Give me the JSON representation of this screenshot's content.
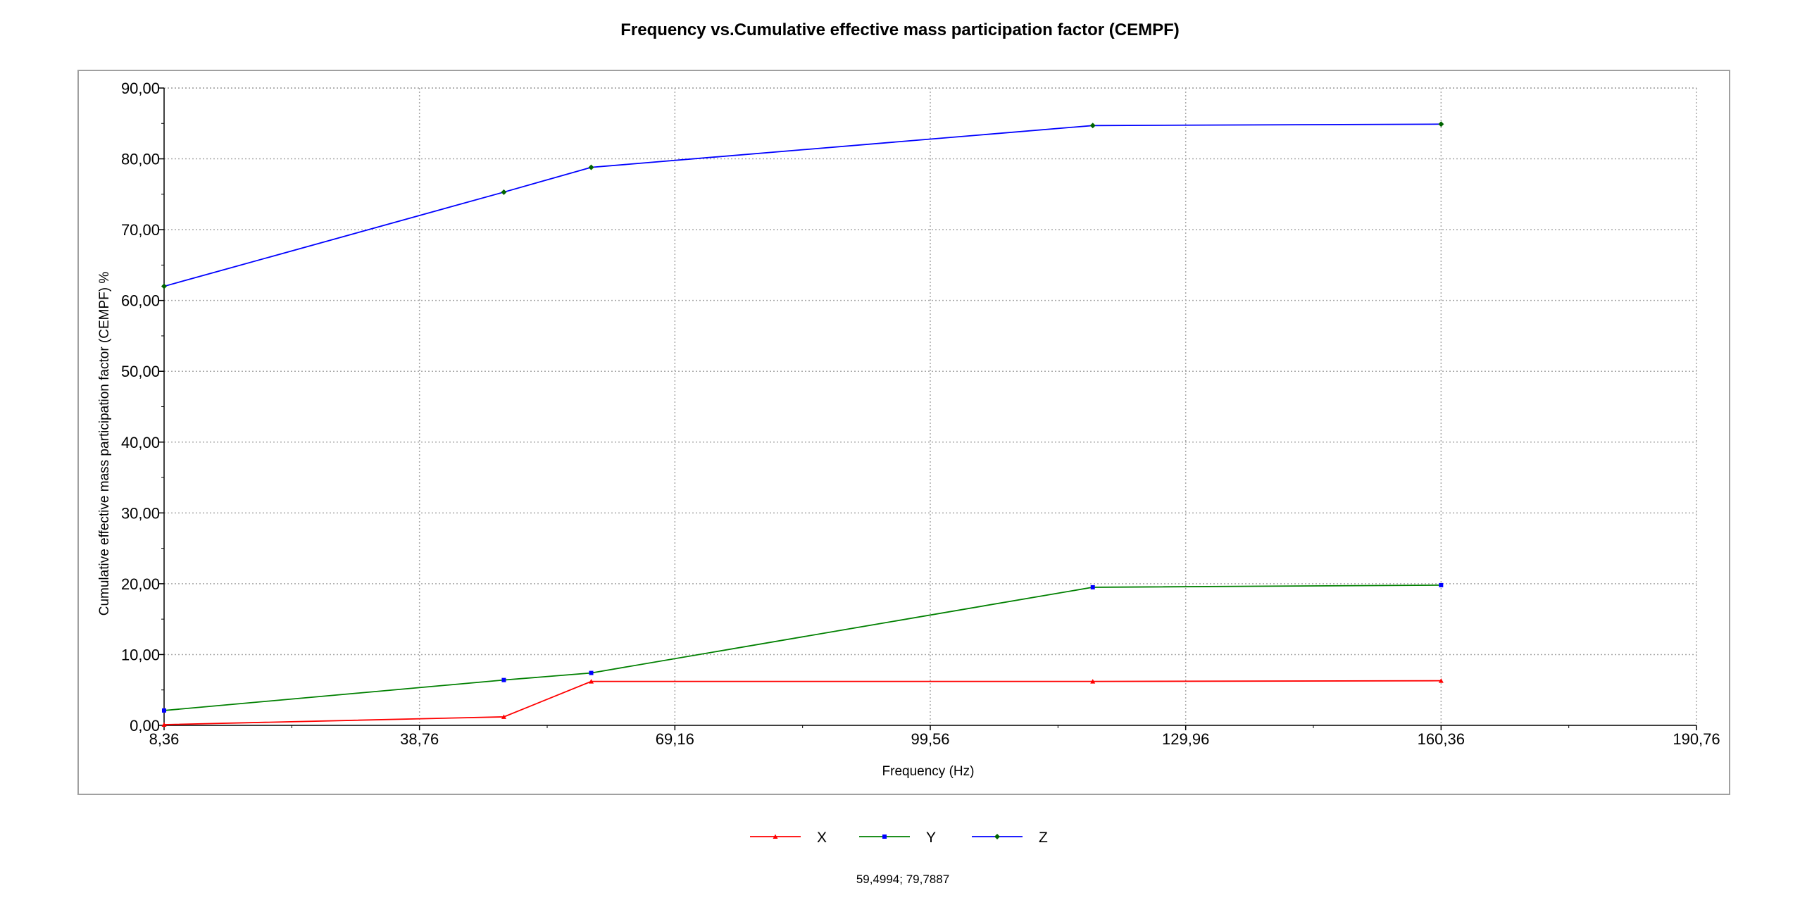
{
  "chart_data": {
    "type": "line",
    "title": "Frequency vs.Cumulative effective mass participation factor (CEMPF)",
    "xlabel": "Frequency (Hz)",
    "ylabel": "Cumulative effective mass participation factor (CEMPF) %",
    "xlim": [
      8.36,
      190.76
    ],
    "ylim": [
      0,
      90
    ],
    "x_ticks": [
      "8,36",
      "38,76",
      "69,16",
      "99,56",
      "129,96",
      "160,36",
      "190,76"
    ],
    "y_ticks": [
      "0,00",
      "10,00",
      "20,00",
      "30,00",
      "40,00",
      "50,00",
      "60,00",
      "70,00",
      "80,00",
      "90,00"
    ],
    "x_tick_values": [
      8.36,
      38.76,
      69.16,
      99.56,
      129.96,
      160.36,
      190.76
    ],
    "y_tick_values": [
      0,
      10,
      20,
      30,
      40,
      50,
      60,
      70,
      80,
      90
    ],
    "grid": true,
    "legend_position": "bottom-center",
    "series": [
      {
        "name": "X",
        "color": "#ff0000",
        "marker": "triangle",
        "x": [
          8.36,
          48.8,
          59.2,
          118.9,
          160.36
        ],
        "y": [
          0.1,
          1.2,
          6.2,
          6.2,
          6.3
        ]
      },
      {
        "name": "Y",
        "color": "#008000",
        "marker": "square",
        "marker_color": "#0000ff",
        "x": [
          8.36,
          48.8,
          59.2,
          118.9,
          160.36
        ],
        "y": [
          2.1,
          6.4,
          7.4,
          19.5,
          19.8
        ]
      },
      {
        "name": "Z",
        "color": "#0000ff",
        "marker": "diamond",
        "marker_color": "#006400",
        "x": [
          8.36,
          48.8,
          59.2,
          118.9,
          160.36
        ],
        "y": [
          62.0,
          75.3,
          78.8,
          84.7,
          84.9
        ]
      }
    ]
  },
  "cursor_readout": "59,4994; 79,7887"
}
